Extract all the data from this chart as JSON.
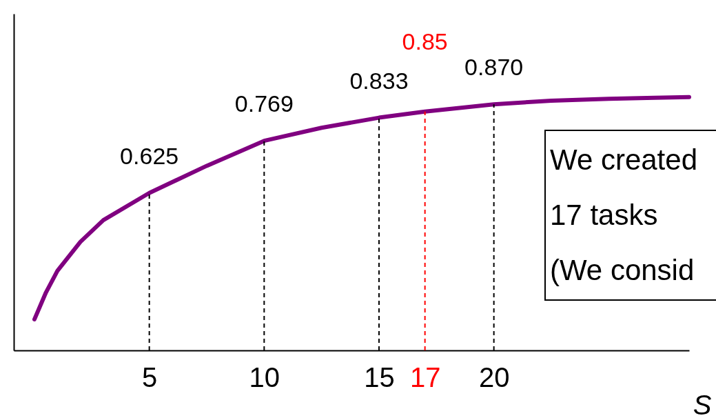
{
  "chart_data": {
    "type": "line",
    "xlabel": "S",
    "xlim": [
      -0.9,
      28.5
    ],
    "ylim": [
      0.19,
      1.12
    ],
    "xticks": [
      5,
      10,
      15,
      17,
      20
    ],
    "grid": false,
    "marker": "none",
    "line_style": "solid",
    "tick_labels": "x",
    "x": [
      0,
      0.5,
      1,
      2,
      3,
      5,
      7.5,
      10,
      12.5,
      15,
      17,
      20,
      22.5,
      25,
      27,
      28.5
    ],
    "series": [
      {
        "color": "#800080",
        "values": [
          0.276,
          0.35,
          0.41,
          0.49,
          0.55,
          0.625,
          0.7,
          0.769,
          0.805,
          0.833,
          0.85,
          0.87,
          0.88,
          0.885,
          0.888,
          0.89
        ],
        "value_labels": [
          null,
          null,
          null,
          null,
          null,
          "0.625",
          null,
          "0.769",
          null,
          "0.833",
          "0.85",
          "0.870",
          null,
          null,
          null,
          null
        ]
      }
    ],
    "ref_lines": [
      {
        "axis": "x",
        "value": 5,
        "color": "#000000",
        "line_style": "dashed"
      },
      {
        "axis": "x",
        "value": 10,
        "color": "#000000",
        "line_style": "dashed"
      },
      {
        "axis": "x",
        "value": 15,
        "color": "#000000",
        "line_style": "dashed"
      },
      {
        "axis": "x",
        "value": 17,
        "color": "#ff0000",
        "line_style": "dashed"
      },
      {
        "axis": "x",
        "value": 20,
        "color": "#000000",
        "line_style": "dashed"
      }
    ],
    "annotations": [
      "We created",
      "17 tasks",
      "(We consid"
    ]
  }
}
